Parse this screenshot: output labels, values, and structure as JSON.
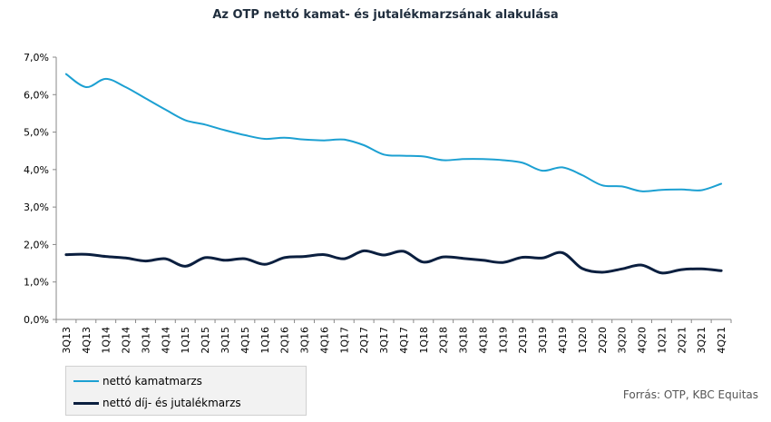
{
  "chart_data": {
    "type": "line",
    "title": "Az OTP nettó kamat- és jutalékmarzsának alakulása",
    "categories": [
      "3Q13",
      "4Q13",
      "1Q14",
      "2Q14",
      "3Q14",
      "4Q14",
      "1Q15",
      "2Q15",
      "3Q15",
      "4Q15",
      "1Q16",
      "2Q16",
      "3Q16",
      "4Q16",
      "1Q17",
      "2Q17",
      "3Q17",
      "4Q17",
      "1Q18",
      "2Q18",
      "3Q18",
      "4Q18",
      "1Q19",
      "2Q19",
      "3Q19",
      "4Q19",
      "1Q20",
      "2Q20",
      "3Q20",
      "4Q20",
      "1Q21",
      "2Q21",
      "3Q21",
      "4Q21"
    ],
    "ylim": [
      0,
      7
    ],
    "yticks": [
      "0,0%",
      "1,0%",
      "2,0%",
      "3,0%",
      "4,0%",
      "5,0%",
      "6,0%",
      "7,0%"
    ],
    "grid": false,
    "legend_position": "bottom-left",
    "series": [
      {
        "name": "nettó kamatmarzs",
        "color": "#1ca0d2",
        "values": [
          6.55,
          6.2,
          6.42,
          6.2,
          5.9,
          5.6,
          5.32,
          5.2,
          5.05,
          4.92,
          4.82,
          4.85,
          4.8,
          4.78,
          4.8,
          4.65,
          4.4,
          4.37,
          4.35,
          4.25,
          4.28,
          4.28,
          4.25,
          4.18,
          3.97,
          4.06,
          3.85,
          3.58,
          3.55,
          3.42,
          3.46,
          3.47,
          3.45,
          3.62
        ]
      },
      {
        "name": "nettó díj- és jutalékmarzs",
        "color": "#0b1f3f",
        "values": [
          1.73,
          1.74,
          1.68,
          1.64,
          1.56,
          1.62,
          1.42,
          1.65,
          1.58,
          1.62,
          1.47,
          1.65,
          1.68,
          1.73,
          1.62,
          1.83,
          1.72,
          1.82,
          1.53,
          1.67,
          1.63,
          1.58,
          1.52,
          1.66,
          1.64,
          1.78,
          1.36,
          1.26,
          1.35,
          1.45,
          1.24,
          1.33,
          1.35,
          1.3
        ]
      }
    ]
  },
  "source": "Forrás: OTP, KBC Equitas"
}
